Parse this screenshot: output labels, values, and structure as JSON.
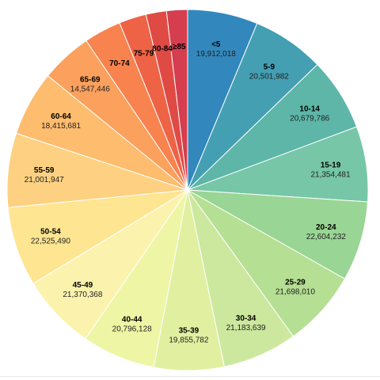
{
  "chart_data": {
    "type": "pie",
    "start_angle_deg": 0,
    "direction": "clockwise",
    "categories": [
      "<5",
      "5-9",
      "10-14",
      "15-19",
      "20-24",
      "25-29",
      "30-34",
      "35-39",
      "40-44",
      "45-49",
      "50-54",
      "55-59",
      "60-64",
      "65-69",
      "70-74",
      "75-79",
      "80-84",
      "≥85"
    ],
    "values": [
      19912018,
      20501982,
      20679786,
      21354481,
      22604232,
      21698010,
      21183639,
      19855782,
      20796128,
      21370368,
      22525490,
      21001947,
      18415681,
      14547446,
      10587721,
      7730129,
      5811429,
      5938492
    ],
    "value_labels": [
      "19,912,018",
      "20,501,982",
      "20,679,786",
      "21,354,481",
      "22,604,232",
      "21,698,010",
      "21,183,639",
      "19,855,782",
      "20,796,128",
      "21,370,368",
      "22,525,490",
      "21,001,947",
      "18,415,681",
      "14,547,446",
      "",
      "",
      "",
      ""
    ],
    "colors": [
      "#3288bd",
      "#449fb3",
      "#5db6a8",
      "#77c6a7",
      "#99d594",
      "#b5df92",
      "#cce89e",
      "#e0f0a0",
      "#eef6a5",
      "#fbf3ad",
      "#fee591",
      "#fdd181",
      "#fdbc6e",
      "#fca15d",
      "#f8834f",
      "#ee6346",
      "#e04a44",
      "#d53e4f"
    ],
    "legend": "none",
    "show_values_on_slices": true
  }
}
